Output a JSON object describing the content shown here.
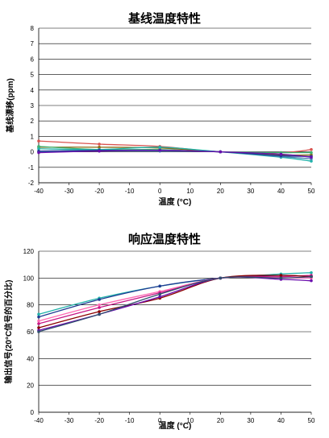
{
  "chart_data": [
    {
      "type": "line",
      "title": "基线温度特性",
      "xlabel": "温度 (°C)",
      "ylabel": "基线漂移(ppm)",
      "x": [
        -40,
        -20,
        0,
        20,
        40,
        50
      ],
      "xlim": [
        -40,
        50
      ],
      "ylim": [
        -2,
        8
      ],
      "xticks": [
        -40,
        -30,
        -20,
        -10,
        0,
        10,
        20,
        30,
        40,
        50
      ],
      "yticks": [
        -2,
        -1,
        0,
        1,
        2,
        3,
        4,
        5,
        6,
        7,
        8
      ],
      "grid": true,
      "legend": "none",
      "series": [
        {
          "color": "#d9534f",
          "values": [
            0.7,
            0.5,
            0.35,
            0.0,
            -0.05,
            0.15
          ]
        },
        {
          "color": "#8b6914",
          "values": [
            0.3,
            0.3,
            0.25,
            0.0,
            -0.2,
            -0.2
          ]
        },
        {
          "color": "#3cb371",
          "values": [
            0.35,
            0.15,
            0.15,
            0.0,
            -0.05,
            -0.05
          ]
        },
        {
          "color": "#20b2aa",
          "values": [
            0.2,
            0.15,
            0.3,
            0.0,
            -0.35,
            -0.6
          ]
        },
        {
          "color": "#4682b4",
          "values": [
            0.0,
            0.05,
            0.05,
            0.0,
            -0.3,
            -0.45
          ]
        },
        {
          "color": "#1f3a93",
          "values": [
            0.05,
            0.1,
            0.1,
            0.0,
            -0.25,
            -0.3
          ]
        },
        {
          "color": "#6a0dad",
          "values": [
            -0.05,
            0.05,
            0.1,
            0.0,
            -0.15,
            -0.35
          ]
        }
      ]
    },
    {
      "type": "line",
      "title": "响应温度特性",
      "xlabel": "温度 (°C)",
      "ylabel": "输出信号(20°C信号的百分比)",
      "x": [
        -40,
        -20,
        0,
        20,
        40,
        50
      ],
      "xlim": [
        -40,
        50
      ],
      "ylim": [
        0,
        120
      ],
      "xticks": [
        -40,
        -30,
        -20,
        -10,
        0,
        10,
        20,
        30,
        40,
        50
      ],
      "yticks": [
        0,
        20,
        40,
        60,
        80,
        100,
        120
      ],
      "grid": true,
      "legend": "none",
      "series": [
        {
          "color": "#20b2aa",
          "values": [
            73,
            85,
            94,
            100,
            103,
            104
          ]
        },
        {
          "color": "#1f3a93",
          "values": [
            71,
            84,
            94,
            100,
            102,
            101
          ]
        },
        {
          "color": "#ff69b4",
          "values": [
            68,
            80,
            90,
            100,
            100,
            100
          ]
        },
        {
          "color": "#c71585",
          "values": [
            66,
            78,
            89,
            100,
            101,
            102
          ]
        },
        {
          "color": "#8b0000",
          "values": [
            63,
            75,
            85,
            100,
            102,
            101
          ]
        },
        {
          "color": "#6a0dad",
          "values": [
            61,
            73,
            86,
            100,
            99,
            98
          ]
        },
        {
          "color": "#2f4f6f",
          "values": [
            60,
            73,
            88,
            100,
            100,
            101
          ]
        }
      ]
    }
  ]
}
